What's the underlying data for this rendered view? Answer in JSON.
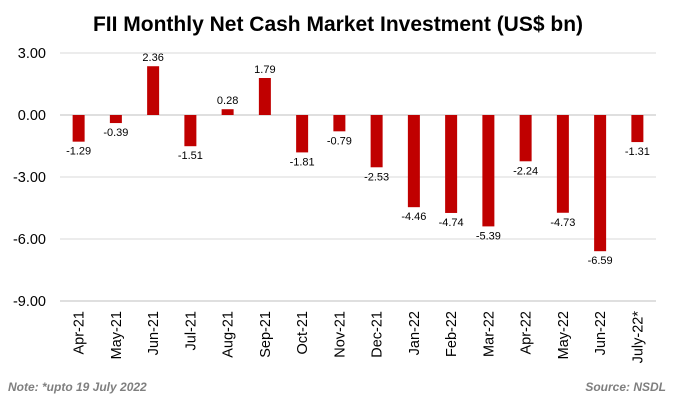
{
  "chart_data": {
    "type": "bar",
    "title": "FII Monthly Net Cash Market Investment (US$ bn)",
    "xlabel": "",
    "ylabel": "",
    "categories": [
      "Apr-21",
      "May-21",
      "Jun-21",
      "Jul-21",
      "Aug-21",
      "Sep-21",
      "Oct-21",
      "Nov-21",
      "Dec-21",
      "Jan-22",
      "Feb-22",
      "Mar-22",
      "Apr-22",
      "May-22",
      "Jun-22",
      "July-22*"
    ],
    "values": [
      -1.29,
      -0.39,
      2.36,
      -1.51,
      0.28,
      1.79,
      -1.81,
      -0.79,
      -2.53,
      -4.46,
      -4.74,
      -5.39,
      -2.24,
      -4.73,
      -6.59,
      -1.31
    ],
    "data_labels": [
      "-1.29",
      "-0.39",
      "2.36",
      "-1.51",
      "0.28",
      "1.79",
      "-1.81",
      "-0.79",
      "-2.53",
      "-4.46",
      "-4.74",
      "-5.39",
      "-2.24",
      "-4.73",
      "-6.59",
      "-1.31"
    ],
    "yticks": [
      3,
      0,
      -3,
      -6,
      -9
    ],
    "ytick_labels": [
      "3.00",
      "0.00",
      "-3.00",
      "-6.00",
      "-9.00"
    ],
    "ylim": [
      -9,
      3
    ],
    "grid": true,
    "bar_color": "#c00000"
  },
  "footer": {
    "note": "Note: *upto 19 July 2022",
    "source": "Source: NSDL"
  }
}
